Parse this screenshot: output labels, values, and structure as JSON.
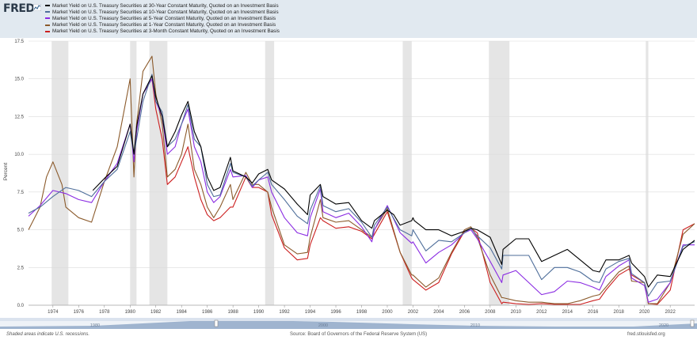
{
  "brand": {
    "logo_text": "FRED"
  },
  "legend": [
    {
      "label": "Market Yield on U.S. Treasury Securities at 30-Year Constant Maturity, Quoted on an Investment Basis",
      "color": "#000000"
    },
    {
      "label": "Market Yield on U.S. Treasury Securities at 10-Year Constant Maturity, Quoted on an Investment Basis",
      "color": "#4e6e9a"
    },
    {
      "label": "Market Yield on U.S. Treasury Securities at 5-Year Constant Maturity, Quoted on an Investment Basis",
      "color": "#8a2be2"
    },
    {
      "label": "Market Yield on U.S. Treasury Securities at 1-Year Constant Maturity, Quoted on an Investment Basis",
      "color": "#8b5a2b"
    },
    {
      "label": "Market Yield on U.S. Treasury Securities at 3-Month Constant Maturity, Quoted on an Investment Basis",
      "color": "#cc1f1f"
    }
  ],
  "footer": {
    "note": "Shaded areas indicate U.S. recessions.",
    "source": "Source: Board of Governors of the Federal Reserve System (US)",
    "url": "fred.stlouisfed.org"
  },
  "navigator": {
    "labels": [
      "1980",
      "2000",
      "2010",
      "2020"
    ]
  },
  "chart_data": {
    "type": "line",
    "xlabel": "",
    "ylabel": "Percent",
    "ylim": [
      0,
      17.5
    ],
    "yticks": [
      "0.0",
      "2.5",
      "5.0",
      "7.5",
      "10.0",
      "12.5",
      "15.0",
      "17.5"
    ],
    "xlim": [
      1972.1,
      2023.9
    ],
    "xticks": [
      "1974",
      "1976",
      "1978",
      "1980",
      "1982",
      "1984",
      "1986",
      "1988",
      "1990",
      "1992",
      "1994",
      "1996",
      "1998",
      "2000",
      "2002",
      "2004",
      "2006",
      "2008",
      "2010",
      "2012",
      "2014",
      "2016",
      "2018",
      "2020",
      "2022"
    ],
    "grid": true,
    "recession_color": "#e5e5e5",
    "recessions": [
      [
        1973.9,
        1975.2
      ],
      [
        1980.0,
        1980.5
      ],
      [
        1981.5,
        1982.9
      ],
      [
        1990.5,
        1991.2
      ],
      [
        2001.2,
        2001.9
      ],
      [
        2007.9,
        2009.5
      ],
      [
        2020.1,
        2020.3
      ]
    ],
    "series": [
      {
        "name": "Market Yield on U.S. Treasury Securities at 30-Year Constant Maturity, Quoted on an Investment Basis",
        "color": "#000000",
        "x": [
          1977.1,
          1978,
          1979,
          1980,
          1980.3,
          1980.5,
          1981,
          1981.7,
          1982,
          1982.5,
          1982.9,
          1983.5,
          1984,
          1984.5,
          1985,
          1985.5,
          1986,
          1986.5,
          1987,
          1987.8,
          1988,
          1989,
          1989.5,
          1990,
          1990.7,
          1991,
          1992,
          1993,
          1993.8,
          1994,
          1994.8,
          1995,
          1996,
          1997,
          1998,
          1998.8,
          1999,
          2000,
          2000.5,
          2001,
          2001.9,
          2002,
          2002.1,
          2003,
          2004,
          2005,
          2006,
          2006.5,
          2007,
          2008,
          2008.9,
          2009,
          2010,
          2011,
          2012,
          2013,
          2014,
          2015,
          2016,
          2016.5,
          2017,
          2018,
          2018.8,
          2019,
          2020,
          2020.3,
          2021,
          2022,
          2023,
          2023.9
        ],
        "y": [
          7.6,
          8.4,
          9.2,
          12.0,
          10.0,
          11.8,
          14.0,
          15.2,
          13.8,
          12.5,
          10.5,
          11.5,
          12.6,
          13.5,
          11.5,
          10.5,
          8.5,
          7.6,
          7.8,
          9.8,
          8.9,
          8.5,
          8.1,
          8.7,
          9.0,
          8.3,
          7.7,
          6.7,
          6.0,
          7.3,
          8.0,
          7.2,
          6.7,
          6.8,
          5.6,
          5.1,
          5.6,
          6.3,
          6.0,
          5.3,
          5.6,
          5.8,
          5.6,
          5.0,
          5.0,
          4.6,
          4.9,
          5.1,
          5.0,
          4.5,
          2.7,
          3.7,
          4.4,
          4.4,
          2.9,
          3.3,
          3.7,
          3.0,
          2.3,
          2.2,
          3.0,
          3.0,
          3.3,
          2.8,
          1.9,
          1.2,
          2.0,
          1.9,
          3.7,
          4.3
        ]
      },
      {
        "name": "Market Yield on U.S. Treasury Securities at 10-Year Constant Maturity, Quoted on an Investment Basis",
        "color": "#4e6e9a",
        "x": [
          1972.1,
          1973,
          1974,
          1975,
          1976,
          1977,
          1978,
          1979,
          1980,
          1980.3,
          1980.5,
          1981,
          1981.7,
          1982,
          1982.5,
          1982.9,
          1983.5,
          1984,
          1984.5,
          1985,
          1985.5,
          1986,
          1986.5,
          1987,
          1987.8,
          1988,
          1989,
          1989.5,
          1990,
          1990.7,
          1991,
          1992,
          1993,
          1993.8,
          1994,
          1994.8,
          1995,
          1996,
          1997,
          1998,
          1998.8,
          1999,
          2000,
          2001,
          2001.9,
          2002,
          2003,
          2004,
          2005,
          2006,
          2006.5,
          2007,
          2008,
          2008.9,
          2009,
          2010,
          2011,
          2012,
          2013,
          2014,
          2015,
          2016,
          2016.5,
          2017,
          2018,
          2018.8,
          2019,
          2020,
          2020.3,
          2021,
          2022,
          2023,
          2023.9
        ],
        "y": [
          6.1,
          6.5,
          7.2,
          7.8,
          7.6,
          7.2,
          8.2,
          9.0,
          11.5,
          10.0,
          11.0,
          13.5,
          15.3,
          13.5,
          12.8,
          10.5,
          11.0,
          12.0,
          13.3,
          11.0,
          10.5,
          8.0,
          7.2,
          7.3,
          9.4,
          8.8,
          8.5,
          7.9,
          8.3,
          8.8,
          8.0,
          7.0,
          5.9,
          5.4,
          6.3,
          7.9,
          6.6,
          6.2,
          6.4,
          5.5,
          4.5,
          5.3,
          6.5,
          5.0,
          4.6,
          5.0,
          3.6,
          4.3,
          4.2,
          4.8,
          5.1,
          4.6,
          3.8,
          2.4,
          3.3,
          3.3,
          3.3,
          1.7,
          2.5,
          2.5,
          2.2,
          1.6,
          1.5,
          2.4,
          2.9,
          3.1,
          2.1,
          1.5,
          0.6,
          1.5,
          1.6,
          3.9,
          4.2
        ]
      },
      {
        "name": "Market Yield on U.S. Treasury Securities at 5-Year Constant Maturity, Quoted on an Investment Basis",
        "color": "#8a2be2",
        "x": [
          1972.1,
          1973,
          1974,
          1975,
          1976,
          1977,
          1978,
          1979,
          1980,
          1980.3,
          1980.5,
          1981,
          1981.7,
          1982,
          1982.5,
          1982.9,
          1983.5,
          1984,
          1984.5,
          1985,
          1985.5,
          1986,
          1986.5,
          1987,
          1987.8,
          1988,
          1989,
          1989.5,
          1990,
          1990.7,
          1991,
          1992,
          1993,
          1993.8,
          1994,
          1994.8,
          1995,
          1996,
          1997,
          1998,
          1998.8,
          1999,
          2000,
          2001,
          2001.9,
          2002,
          2003,
          2004,
          2005,
          2006,
          2006.5,
          2007,
          2008,
          2008.9,
          2009,
          2010,
          2011,
          2012,
          2013,
          2014,
          2015,
          2016,
          2016.5,
          2017,
          2018,
          2018.8,
          2019,
          2020,
          2020.3,
          2021,
          2022,
          2023,
          2023.9
        ],
        "y": [
          5.9,
          6.6,
          7.6,
          7.4,
          7.0,
          6.8,
          8.2,
          9.4,
          12.0,
          9.5,
          11.5,
          14.0,
          15.0,
          13.5,
          12.5,
          10.0,
          10.5,
          12.0,
          13.0,
          10.5,
          9.5,
          7.5,
          6.8,
          7.2,
          9.0,
          8.5,
          8.6,
          7.8,
          8.3,
          8.5,
          7.5,
          5.8,
          4.8,
          4.6,
          5.8,
          7.7,
          6.2,
          5.8,
          6.1,
          5.2,
          4.2,
          5.0,
          6.6,
          4.8,
          4.1,
          4.2,
          2.8,
          3.5,
          4.0,
          4.8,
          5.0,
          4.4,
          2.9,
          1.5,
          2.0,
          2.3,
          1.5,
          0.7,
          0.9,
          1.6,
          1.5,
          1.2,
          1.0,
          1.9,
          2.6,
          3.0,
          1.8,
          1.3,
          0.2,
          0.4,
          1.5,
          4.0,
          4.0
        ]
      },
      {
        "name": "Market Yield on U.S. Treasury Securities at 1-Year Constant Maturity, Quoted on an Investment Basis",
        "color": "#8b5a2b",
        "x": [
          1972.1,
          1973,
          1973.5,
          1974,
          1974.7,
          1975,
          1976,
          1977,
          1978,
          1979,
          1980,
          1980.3,
          1980.5,
          1981,
          1981.7,
          1982,
          1982.5,
          1982.9,
          1983.5,
          1984,
          1984.5,
          1985,
          1985.5,
          1986,
          1986.5,
          1987,
          1987.8,
          1988,
          1989,
          1989.5,
          1990,
          1990.7,
          1991,
          1992,
          1993,
          1993.8,
          1994,
          1994.8,
          1995,
          1996,
          1997,
          1998,
          1998.8,
          1999,
          2000,
          2001,
          2001.9,
          2002,
          2003,
          2004,
          2005,
          2006,
          2006.5,
          2007,
          2008,
          2008.9,
          2009,
          2010,
          2011,
          2012,
          2013,
          2014,
          2015,
          2016,
          2016.5,
          2017,
          2018,
          2018.8,
          2019,
          2020,
          2020.3,
          2021,
          2022,
          2023,
          2023.9
        ],
        "y": [
          5.0,
          6.5,
          8.5,
          9.5,
          8.0,
          6.5,
          5.8,
          5.5,
          8.2,
          10.5,
          15.0,
          8.5,
          12.0,
          15.5,
          16.5,
          14.0,
          12.0,
          8.5,
          9.0,
          10.0,
          12.0,
          9.0,
          8.0,
          6.5,
          5.8,
          6.5,
          8.0,
          7.0,
          8.8,
          8.0,
          8.0,
          7.5,
          6.5,
          4.0,
          3.4,
          3.5,
          4.5,
          7.0,
          5.8,
          5.5,
          5.6,
          5.0,
          4.5,
          5.0,
          6.4,
          3.5,
          2.0,
          2.0,
          1.2,
          1.8,
          3.5,
          5.0,
          5.2,
          4.5,
          2.0,
          0.5,
          0.5,
          0.3,
          0.2,
          0.2,
          0.1,
          0.1,
          0.3,
          0.6,
          0.7,
          1.2,
          2.2,
          2.6,
          1.6,
          1.5,
          0.1,
          0.1,
          1.5,
          4.7,
          5.4
        ]
      },
      {
        "name": "Market Yield on U.S. Treasury Securities at 3-Month Constant Maturity, Quoted on an Investment Basis",
        "color": "#cc1f1f",
        "x": [
          1981.7,
          1982,
          1982.5,
          1982.9,
          1983.5,
          1984,
          1984.5,
          1985,
          1985.5,
          1986,
          1986.5,
          1987,
          1987.8,
          1988,
          1989,
          1989.5,
          1990,
          1990.7,
          1991,
          1992,
          1993,
          1993.8,
          1994,
          1994.8,
          1995,
          1996,
          1997,
          1998,
          1998.8,
          1999,
          2000,
          2001,
          2001.9,
          2002,
          2003,
          2004,
          2005,
          2006,
          2006.5,
          2007,
          2008,
          2008.9,
          2009,
          2010,
          2011,
          2012,
          2013,
          2014,
          2015,
          2016,
          2016.5,
          2017,
          2018,
          2018.8,
          2019,
          2020,
          2020.3,
          2021,
          2022,
          2023,
          2023.9
        ],
        "y": [
          15.0,
          13.0,
          11.0,
          8.0,
          8.5,
          9.5,
          10.5,
          8.5,
          7.0,
          6.0,
          5.6,
          5.8,
          6.5,
          6.5,
          8.5,
          7.8,
          7.8,
          7.5,
          6.0,
          3.8,
          3.0,
          3.1,
          4.0,
          5.8,
          5.6,
          5.1,
          5.2,
          4.9,
          4.4,
          4.7,
          6.2,
          3.5,
          1.8,
          1.7,
          1.0,
          1.5,
          3.4,
          4.9,
          5.1,
          4.8,
          1.5,
          0.1,
          0.2,
          0.1,
          0.05,
          0.1,
          0.05,
          0.05,
          0.05,
          0.3,
          0.4,
          1.0,
          2.0,
          2.4,
          2.0,
          1.5,
          0.1,
          0.05,
          1.0,
          5.0,
          5.4
        ]
      }
    ]
  }
}
